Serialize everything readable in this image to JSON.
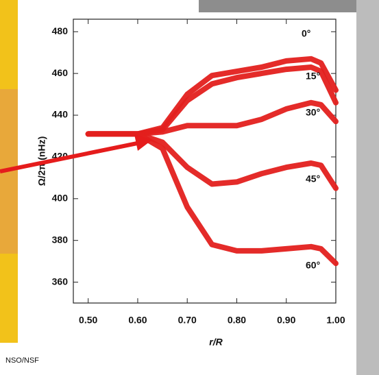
{
  "chart_data": {
    "type": "line",
    "xlabel": "r/R",
    "ylabel": "Ω/2π (nHz)",
    "x": [
      0.5,
      0.55,
      0.6,
      0.65,
      0.7,
      0.75,
      0.8,
      0.85,
      0.9,
      0.95,
      0.97,
      1.0
    ],
    "series": [
      {
        "name": "0°",
        "color": "#e3201e",
        "values": [
          431,
          431,
          431,
          434,
          450,
          459,
          461,
          463,
          466,
          467,
          465,
          452
        ]
      },
      {
        "name": "15°",
        "color": "#e3201e",
        "values": [
          431,
          431,
          431,
          433,
          447,
          455,
          458,
          460,
          462,
          463,
          461,
          446
        ]
      },
      {
        "name": "30°",
        "color": "#e3201e",
        "values": [
          431,
          431,
          431,
          432,
          435,
          435,
          435,
          438,
          443,
          446,
          445,
          437
        ]
      },
      {
        "name": "45°",
        "color": "#e3201e",
        "values": [
          431,
          431,
          431,
          427,
          415,
          407,
          408,
          412,
          415,
          417,
          416,
          405
        ]
      },
      {
        "name": "60°",
        "color": "#e3201e",
        "values": [
          431,
          431,
          431,
          424,
          396,
          378,
          375,
          375,
          376,
          377,
          376,
          369
        ]
      }
    ],
    "xlim": [
      0.47,
      1.0
    ],
    "ylim": [
      350,
      486
    ],
    "xticks": [
      {
        "value": 0.5,
        "label": "0.50"
      },
      {
        "value": 0.6,
        "label": "0.60"
      },
      {
        "value": 0.7,
        "label": "0.70"
      },
      {
        "value": 0.8,
        "label": "0.80"
      },
      {
        "value": 0.9,
        "label": "0.90"
      },
      {
        "value": 1.0,
        "label": "1.00"
      }
    ],
    "yticks": [
      360,
      380,
      400,
      420,
      440,
      460,
      480
    ],
    "grid": false,
    "credit": "NSO/NSF"
  }
}
